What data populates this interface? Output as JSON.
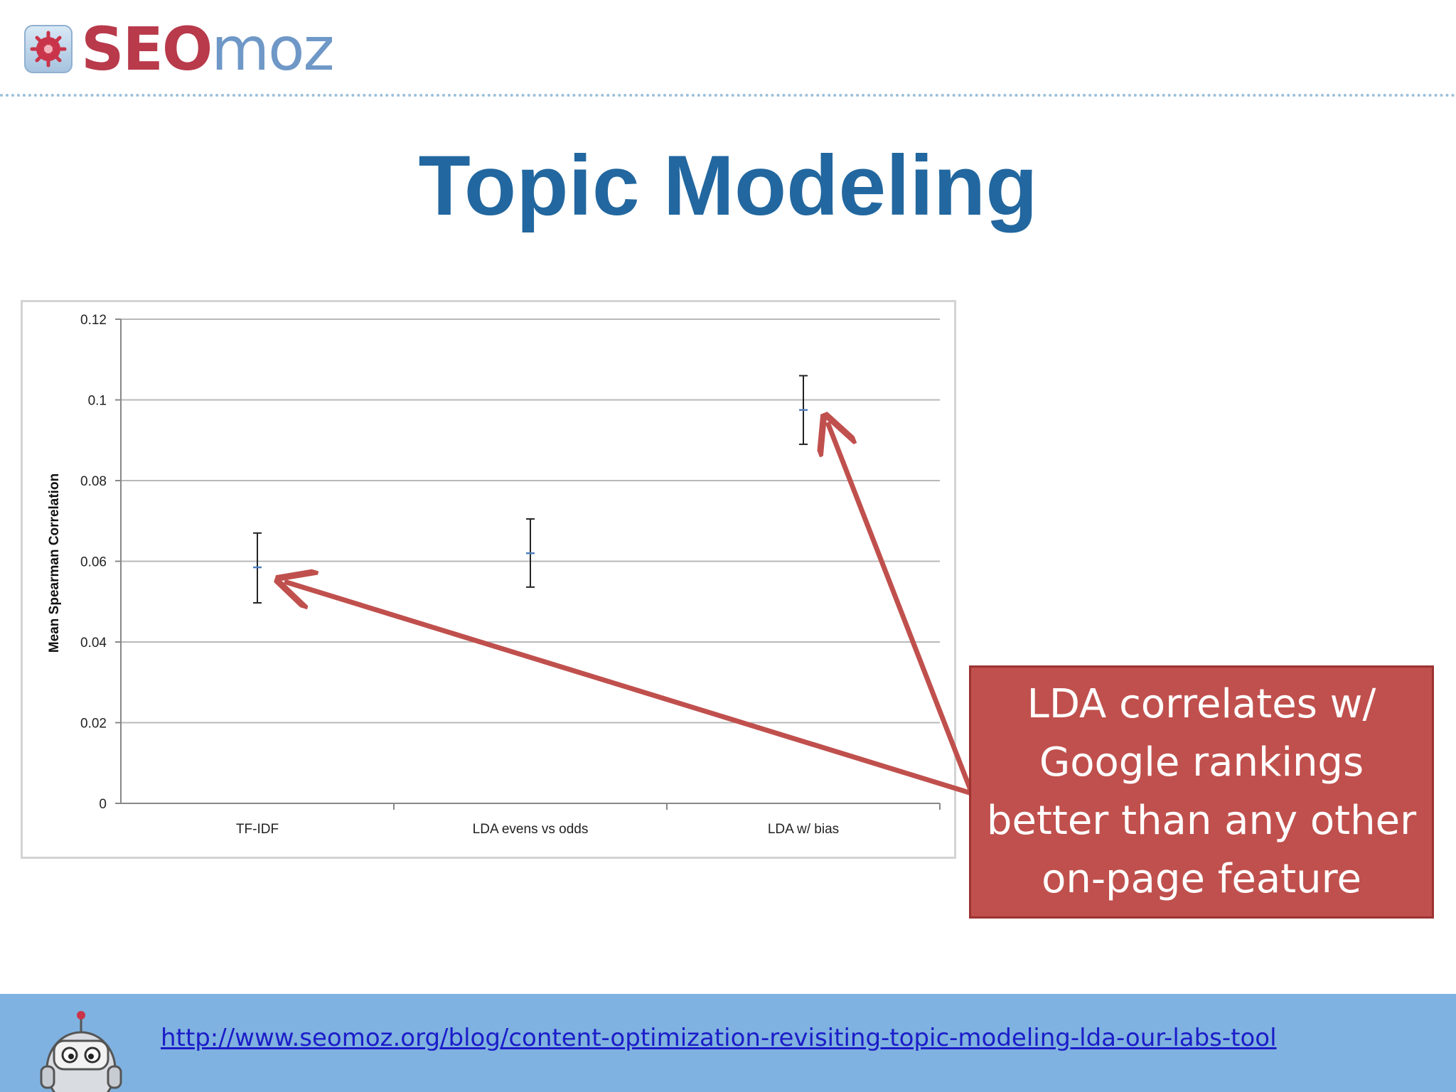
{
  "logo": {
    "seo": "SEO",
    "moz": "moz"
  },
  "slide": {
    "title": "Topic Modeling"
  },
  "chart_data": {
    "type": "scatter",
    "title": "",
    "xlabel": "",
    "ylabel": "Mean Spearman Correlation",
    "categories": [
      "TF-IDF",
      "LDA evens vs odds",
      "LDA w/ bias"
    ],
    "values": [
      0.0585,
      0.062,
      0.0975
    ],
    "error_low": [
      0.0497,
      0.0536,
      0.089
    ],
    "error_high": [
      0.067,
      0.0705,
      0.106
    ],
    "ylim": [
      0,
      0.12
    ],
    "yticks": [
      0,
      0.02,
      0.04,
      0.06,
      0.08,
      0.1,
      0.12
    ],
    "ytick_labels": [
      "0",
      "0.02",
      "0.04",
      "0.06",
      "0.08",
      "0.1",
      "0.12"
    ],
    "grid": true,
    "colors": {
      "marker": "#4f81bd",
      "errorbar": "#222222",
      "grid": "#b8b8b8"
    }
  },
  "callout": {
    "lines": [
      "LDA correlates w/",
      "Google rankings",
      "better than any other",
      "on-page feature"
    ],
    "color": "#c0504d"
  },
  "footer": {
    "link": "http://www.seomoz.org/blog/content-optimization-revisiting-topic-modeling-lda-our-labs-tool"
  }
}
